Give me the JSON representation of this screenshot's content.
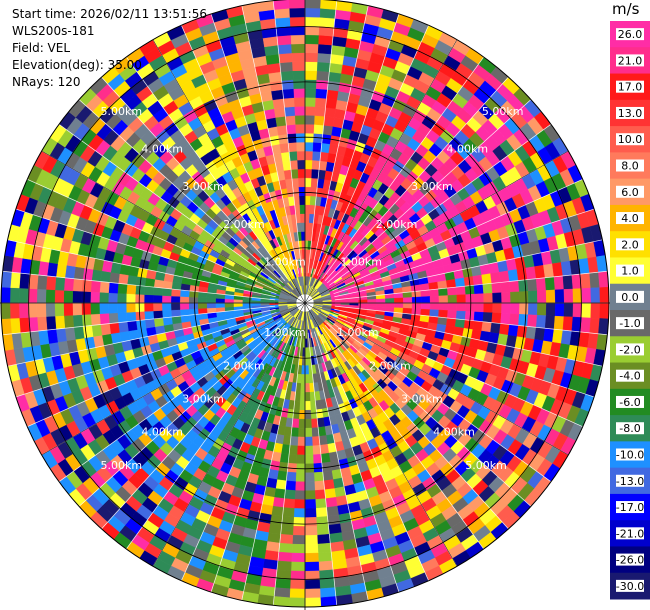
{
  "header": {
    "start_time": "Start time: 2026/02/11 13:51:56",
    "instrument": "WLS200s-181",
    "field": "Field: VEL",
    "elevation": "Elevation(deg): 35.00",
    "nrays": "NRays: 120"
  },
  "colorbar": {
    "unit": "m/s",
    "ticks": [
      "26.0",
      "21.0",
      "17.0",
      "13.0",
      "10.0",
      "8.0",
      "6.0",
      "4.0",
      "2.0",
      "1.0",
      "0.0",
      "-1.0",
      "-2.0",
      "-4.0",
      "-6.0",
      "-8.0",
      "-10.0",
      "-13.0",
      "-17.0",
      "-21.0",
      "-26.0",
      "-30.0"
    ],
    "colors": [
      "#ff2da6",
      "#ff2d8c",
      "#ff1a1a",
      "#ff3333",
      "#ff5c4d",
      "#ff7a5c",
      "#ff9966",
      "#ffb400",
      "#ffe000",
      "#ffff33",
      "#708090",
      "#696969",
      "#9acd32",
      "#6b8e23",
      "#228b22",
      "#2e8b57",
      "#1e90ff",
      "#4169e1",
      "#0000ff",
      "#0000cd",
      "#000080",
      "#191970"
    ]
  },
  "chart_data": {
    "type": "ppi",
    "field": "VEL",
    "unit": "m/s",
    "elevation_deg": 35.0,
    "n_rays": 120,
    "range_rings_km": [
      1,
      2,
      3,
      4,
      5
    ],
    "ring_labels": [
      "1.00km",
      "2.00km",
      "3.00km",
      "4.00km",
      "5.00km"
    ],
    "max_range_km": 5.5,
    "color_scale_min": -30.0,
    "color_scale_max": 26.0
  }
}
